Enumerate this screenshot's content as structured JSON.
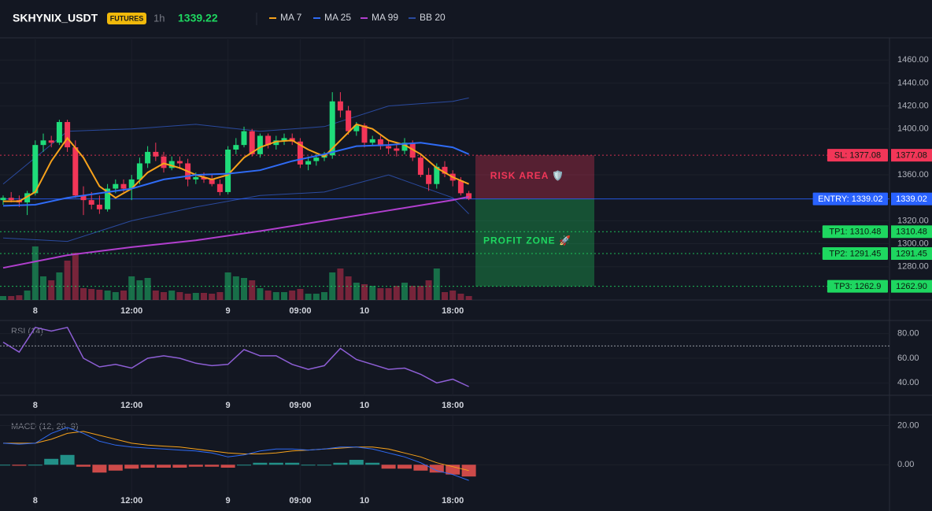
{
  "header": {
    "symbol": "SKHYNIX_USDT",
    "badge": "FUTURES",
    "interval": "1h",
    "last_price": 1339.22
  },
  "chart_data": [
    {
      "type": "candlestick",
      "up_color": "#1fdc7a",
      "down_color": "#f23658",
      "ylim": [
        1251,
        1478
      ],
      "yticks": [
        {
          "value": 1460,
          "label": "1460.00"
        },
        {
          "value": 1440,
          "label": "1440.00"
        },
        {
          "value": 1420,
          "label": "1420.00"
        },
        {
          "value": 1400,
          "label": "1400.00"
        },
        {
          "value": 1360,
          "label": "1360.00"
        },
        {
          "value": 1320,
          "label": "1320.00"
        },
        {
          "value": 1300,
          "label": "1300.00"
        },
        {
          "value": 1280,
          "label": "1280.00"
        }
      ],
      "xticks": [
        {
          "value": 4,
          "label": "8"
        },
        {
          "value": 16,
          "label": "12:00"
        },
        {
          "value": 28,
          "label": "9"
        },
        {
          "value": 37,
          "label": "09:00"
        },
        {
          "value": 45,
          "label": "10"
        },
        {
          "value": 56,
          "label": "18:00"
        }
      ],
      "candles": [
        [
          1338,
          1342,
          1334,
          1340
        ],
        [
          1340,
          1345,
          1336,
          1338
        ],
        [
          1338,
          1342,
          1332,
          1336
        ],
        [
          1336,
          1346,
          1325,
          1344
        ],
        [
          1344,
          1390,
          1342,
          1386
        ],
        [
          1386,
          1396,
          1380,
          1390
        ],
        [
          1390,
          1394,
          1384,
          1388
        ],
        [
          1388,
          1408,
          1386,
          1406
        ],
        [
          1406,
          1408,
          1380,
          1384
        ],
        [
          1384,
          1390,
          1340,
          1342
        ],
        [
          1342,
          1350,
          1325,
          1338
        ],
        [
          1338,
          1345,
          1330,
          1334
        ],
        [
          1334,
          1342,
          1326,
          1330
        ],
        [
          1330,
          1352,
          1328,
          1348
        ],
        [
          1348,
          1356,
          1344,
          1352
        ],
        [
          1352,
          1356,
          1345,
          1348
        ],
        [
          1348,
          1360,
          1338,
          1356
        ],
        [
          1356,
          1375,
          1352,
          1370
        ],
        [
          1370,
          1385,
          1366,
          1380
        ],
        [
          1380,
          1388,
          1372,
          1376
        ],
        [
          1376,
          1380,
          1362,
          1366
        ],
        [
          1366,
          1376,
          1364,
          1372
        ],
        [
          1372,
          1376,
          1365,
          1370
        ],
        [
          1370,
          1374,
          1350,
          1356
        ],
        [
          1356,
          1362,
          1352,
          1358
        ],
        [
          1358,
          1362,
          1353,
          1356
        ],
        [
          1356,
          1360,
          1350,
          1352
        ],
        [
          1352,
          1356,
          1342,
          1345
        ],
        [
          1345,
          1385,
          1343,
          1382
        ],
        [
          1382,
          1392,
          1378,
          1386
        ],
        [
          1386,
          1402,
          1384,
          1398
        ],
        [
          1398,
          1400,
          1376,
          1378
        ],
        [
          1378,
          1396,
          1375,
          1394
        ],
        [
          1394,
          1396,
          1383,
          1386
        ],
        [
          1386,
          1394,
          1382,
          1390
        ],
        [
          1390,
          1396,
          1386,
          1392
        ],
        [
          1392,
          1396,
          1386,
          1389
        ],
        [
          1389,
          1392,
          1366,
          1369
        ],
        [
          1369,
          1376,
          1364,
          1372
        ],
        [
          1372,
          1378,
          1368,
          1375
        ],
        [
          1375,
          1380,
          1372,
          1377
        ],
        [
          1377,
          1432,
          1374,
          1424
        ],
        [
          1424,
          1432,
          1410,
          1416
        ],
        [
          1416,
          1420,
          1395,
          1398
        ],
        [
          1398,
          1406,
          1394,
          1403
        ],
        [
          1403,
          1405,
          1384,
          1388
        ],
        [
          1388,
          1394,
          1385,
          1391
        ],
        [
          1391,
          1394,
          1382,
          1385
        ],
        [
          1385,
          1390,
          1378,
          1383
        ],
        [
          1383,
          1386,
          1376,
          1381
        ],
        [
          1381,
          1392,
          1378,
          1388
        ],
        [
          1388,
          1390,
          1372,
          1375
        ],
        [
          1375,
          1378,
          1358,
          1360
        ],
        [
          1360,
          1366,
          1346,
          1352
        ],
        [
          1352,
          1370,
          1348,
          1367
        ],
        [
          1367,
          1372,
          1358,
          1361
        ],
        [
          1361,
          1364,
          1350,
          1355
        ],
        [
          1355,
          1358,
          1342,
          1344
        ],
        [
          1344,
          1346,
          1338,
          1339.22
        ]
      ],
      "volumes": [
        5,
        5,
        6,
        12,
        68,
        30,
        25,
        35,
        50,
        60,
        15,
        14,
        13,
        12,
        10,
        12,
        30,
        25,
        28,
        12,
        10,
        12,
        10,
        8,
        9,
        9,
        8,
        10,
        35,
        30,
        28,
        25,
        15,
        12,
        10,
        10,
        12,
        14,
        8,
        8,
        10,
        35,
        40,
        30,
        22,
        20,
        18,
        15,
        15,
        18,
        22,
        18,
        18,
        25,
        40,
        10,
        12,
        8,
        5
      ],
      "lines": [
        {
          "name": "MA 7",
          "color": "#f7a21b",
          "x": [
            0,
            2,
            4,
            6,
            8,
            10,
            12,
            14,
            16,
            18,
            20,
            22,
            24,
            26,
            28,
            30,
            32,
            34,
            36,
            38,
            40,
            42,
            44,
            46,
            48,
            50,
            52,
            54,
            56,
            58
          ],
          "values": [
            1337,
            1337,
            1345,
            1372,
            1392,
            1375,
            1350,
            1340,
            1348,
            1362,
            1370,
            1366,
            1360,
            1356,
            1360,
            1375,
            1384,
            1389,
            1390,
            1382,
            1376,
            1390,
            1404,
            1400,
            1390,
            1386,
            1378,
            1366,
            1358,
            1352
          ]
        },
        {
          "name": "MA 25",
          "color": "#2f6bf5",
          "x": [
            0,
            4,
            8,
            12,
            16,
            20,
            24,
            28,
            32,
            36,
            40,
            44,
            48,
            52,
            56,
            58
          ],
          "values": [
            1333,
            1334,
            1340,
            1344,
            1348,
            1356,
            1360,
            1361,
            1364,
            1372,
            1378,
            1385,
            1386,
            1388,
            1384,
            1378
          ]
        },
        {
          "name": "MA 99",
          "color": "#b13fce",
          "x": [
            0,
            8,
            16,
            24,
            32,
            40,
            48,
            56,
            58
          ],
          "values": [
            1279,
            1290,
            1297,
            1303,
            1311,
            1320,
            1329,
            1338,
            1341
          ]
        }
      ],
      "bands": {
        "name": "BB 20",
        "color": "#2a4a9e",
        "x": [
          0,
          8,
          16,
          24,
          32,
          40,
          48,
          56,
          58
        ],
        "upper": [
          1352,
          1398,
          1400,
          1404,
          1398,
          1402,
          1420,
          1424,
          1427
        ],
        "lower": [
          1305,
          1302,
          1320,
          1332,
          1342,
          1345,
          1360,
          1340,
          1326
        ]
      },
      "levels": [
        {
          "label": "SL: 1377.08",
          "value": 1377.08,
          "color": "#f23658"
        },
        {
          "label": "ENTRY: 1339.02",
          "value": 1339.02,
          "color": "#2962ff"
        },
        {
          "label": "TP1: 1310.48",
          "value": 1310.48,
          "color": "#1ed760"
        },
        {
          "label": "TP2: 1291.45",
          "value": 1291.45,
          "color": "#1ed760"
        },
        {
          "label": "TP3: 1262.9",
          "value": 1262.9,
          "value_label": "1262.90",
          "color": "#1ed760"
        }
      ],
      "zones": [
        {
          "label": "RISK AREA 🛡️",
          "color": "#f23658"
        },
        {
          "label": "PROFIT ZONE 🚀",
          "color": "#1ed760"
        }
      ]
    },
    {
      "type": "line",
      "title": "RSI (14)",
      "color": "#8e5fd6",
      "ylim": [
        30,
        90
      ],
      "yticks": [
        {
          "value": 80,
          "label": "80.00"
        },
        {
          "value": 60,
          "label": "60.00"
        },
        {
          "value": 40,
          "label": "40.00"
        }
      ],
      "levels": [
        70
      ],
      "xticks": [
        {
          "value": 4,
          "label": "8"
        },
        {
          "value": 16,
          "label": "12:00"
        },
        {
          "value": 28,
          "label": "9"
        },
        {
          "value": 37,
          "label": "09:00"
        },
        {
          "value": 45,
          "label": "10"
        },
        {
          "value": 56,
          "label": "18:00"
        }
      ],
      "x": [
        0,
        2,
        4,
        6,
        8,
        10,
        12,
        14,
        16,
        18,
        20,
        22,
        24,
        26,
        28,
        30,
        32,
        34,
        36,
        38,
        40,
        42,
        44,
        46,
        48,
        50,
        52,
        54,
        56,
        58
      ],
      "values": [
        73,
        65,
        85,
        82,
        85,
        60,
        53,
        55,
        52,
        60,
        62,
        60,
        56,
        54,
        55,
        67,
        62,
        62,
        55,
        51,
        54,
        68,
        59,
        55,
        51,
        52,
        47,
        40,
        43,
        37
      ]
    },
    {
      "type": "macd",
      "title": "MACD (12, 26, 9)",
      "ylim": [
        -22,
        25
      ],
      "yticks": [
        {
          "value": 20,
          "label": "20.00"
        },
        {
          "value": 0,
          "label": "0.00"
        }
      ],
      "xticks": [
        {
          "value": 4,
          "label": "8"
        },
        {
          "value": 16,
          "label": "12:00"
        },
        {
          "value": 28,
          "label": "9"
        },
        {
          "value": 37,
          "label": "09:00"
        },
        {
          "value": 45,
          "label": "10"
        },
        {
          "value": 56,
          "label": "18:00"
        }
      ],
      "x": [
        0,
        2,
        4,
        6,
        8,
        10,
        12,
        14,
        16,
        18,
        20,
        22,
        24,
        26,
        28,
        30,
        32,
        34,
        36,
        38,
        40,
        42,
        44,
        46,
        48,
        50,
        52,
        54,
        56,
        58
      ],
      "macd": {
        "color": "#2f6bf5",
        "values": [
          11,
          10.5,
          11,
          16,
          19,
          16,
          12,
          10,
          9,
          8.5,
          8,
          7.5,
          7,
          6,
          4,
          5,
          7,
          8,
          8,
          7.5,
          8,
          9,
          9,
          8,
          6,
          4,
          1,
          -3,
          -5,
          -8
        ]
      },
      "signal": {
        "color": "#f7a21b",
        "values": [
          11,
          11,
          11,
          13,
          16,
          17,
          15,
          13,
          11,
          10,
          9.5,
          9,
          8,
          7,
          6,
          5.5,
          5.5,
          6,
          7,
          7.5,
          8,
          8.5,
          9,
          9,
          8,
          6,
          4,
          1,
          -1,
          -3
        ]
      },
      "histogram": {
        "up_color": "#26a69a",
        "down_color": "#ef5350",
        "values": [
          0,
          -0.5,
          0,
          3,
          5,
          -1,
          -4,
          -3,
          -2,
          -1.5,
          -1.5,
          -1.5,
          -1,
          -1,
          -1.5,
          0,
          1,
          1,
          1,
          0,
          0,
          1,
          2.5,
          1,
          -2,
          -2,
          -3,
          -4,
          -5,
          -6
        ]
      }
    }
  ]
}
